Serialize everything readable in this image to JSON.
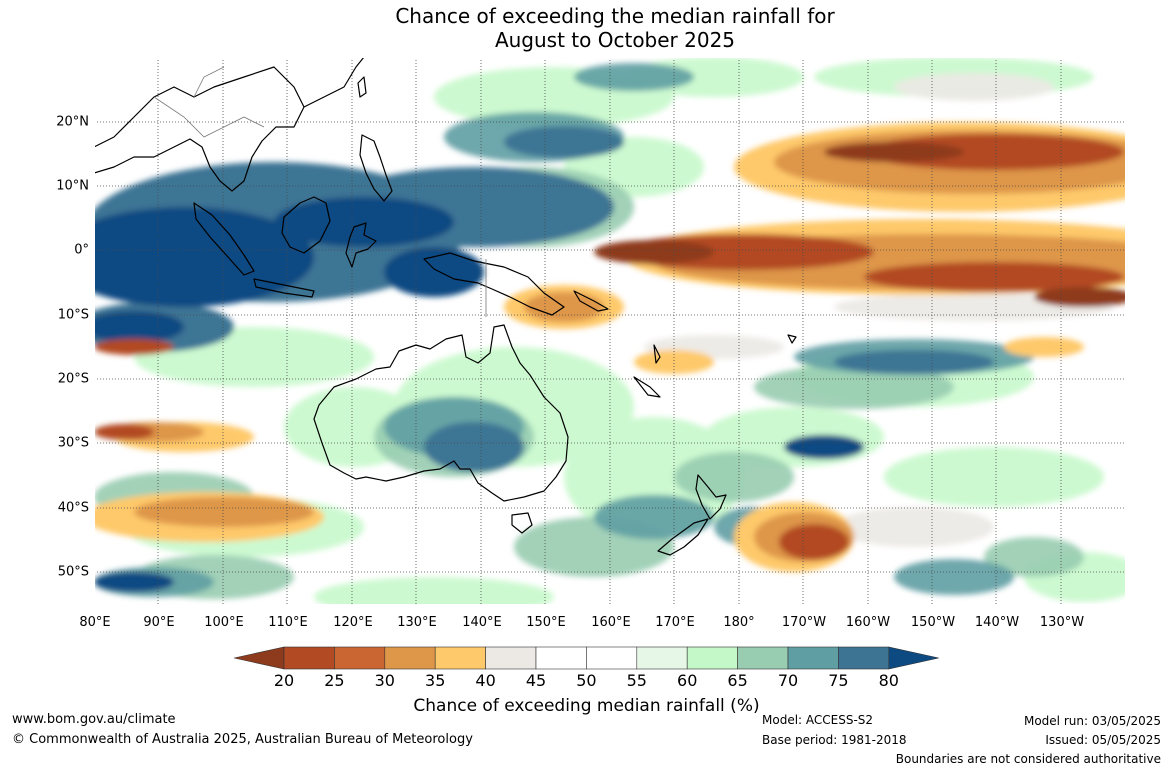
{
  "title": {
    "line1": "Chance of exceeding the median rainfall for",
    "line2": "August to October 2025"
  },
  "map": {
    "lat_labels": [
      "20°N",
      "10°N",
      "0°",
      "10°S",
      "20°S",
      "30°S",
      "40°S",
      "50°S"
    ],
    "lon_labels": [
      "80°E",
      "90°E",
      "100°E",
      "110°E",
      "120°E",
      "130°E",
      "140°E",
      "150°E",
      "160°E",
      "170°E",
      "180°",
      "170°W",
      "160°W",
      "150°W",
      "140°W",
      "130°W"
    ]
  },
  "colorbar": {
    "label": "Chance of exceeding median rainfall (%)",
    "ticks": [
      "20",
      "25",
      "30",
      "35",
      "40",
      "45",
      "50",
      "55",
      "60",
      "65",
      "70",
      "75",
      "80"
    ],
    "colors": [
      "#8e3a1c",
      "#b24a24",
      "#c96632",
      "#de9648",
      "#fec96a",
      "#ece9e5",
      "#ffffff",
      "#ffffff",
      "#e6f7e8",
      "#c4f8c8",
      "#98cdb1",
      "#5f9ea3",
      "#3d7494",
      "#0e4a82"
    ]
  },
  "footer": {
    "website": "www.bom.gov.au/climate",
    "copyright": "© Commonwealth of Australia 2025, Australian Bureau of Meteorology",
    "model": "Model: ACCESS-S2",
    "base_period": "Base period: 1981-2018",
    "model_run": "Model run: 03/05/2025",
    "issued": "Issued: 05/05/2025",
    "boundaries": "Boundaries are not considered authoritative"
  }
}
